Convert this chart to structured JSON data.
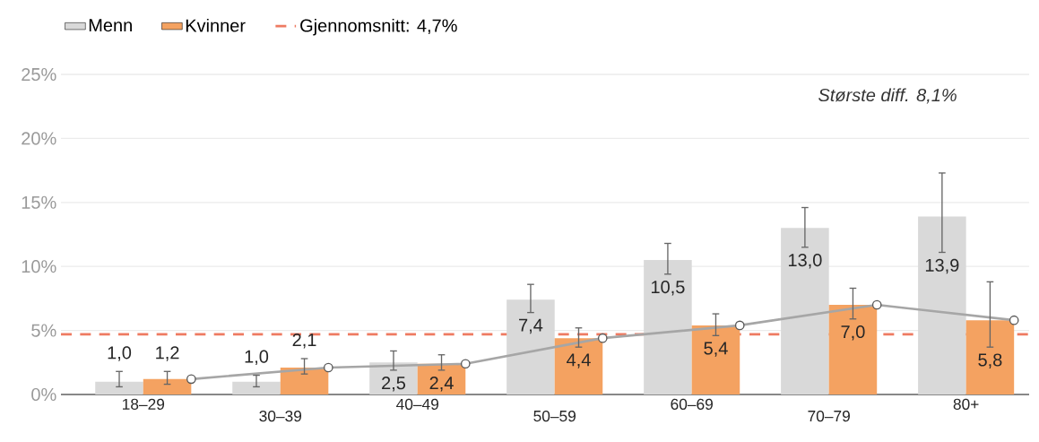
{
  "chart_data": {
    "type": "bar",
    "categories": [
      "18–29",
      "30–39",
      "40–49",
      "50–59",
      "60–69",
      "70–79",
      "80+"
    ],
    "series": [
      {
        "name": "Menn",
        "color": "#d9d9d9",
        "values": [
          1.0,
          1.0,
          2.5,
          7.4,
          10.5,
          13.0,
          13.9
        ],
        "value_labels": [
          "1,0",
          "1,0",
          "2,5",
          "7,4",
          "10,5",
          "13,0",
          "13,9"
        ],
        "errors": [
          [
            0.6,
            1.8
          ],
          [
            0.6,
            1.5
          ],
          [
            1.9,
            3.4
          ],
          [
            6.4,
            8.6
          ],
          [
            9.4,
            11.8
          ],
          [
            11.5,
            14.6
          ],
          [
            11.1,
            17.3
          ]
        ]
      },
      {
        "name": "Kvinner",
        "color": "#f4a261",
        "values": [
          1.2,
          2.1,
          2.4,
          4.4,
          5.4,
          7.0,
          5.8
        ],
        "value_labels": [
          "1,2",
          "2,1",
          "2,4",
          "4,4",
          "5,4",
          "7,0",
          "5,8"
        ],
        "errors": [
          [
            0.8,
            1.8
          ],
          [
            1.6,
            2.8
          ],
          [
            1.9,
            3.1
          ],
          [
            3.7,
            5.2
          ],
          [
            4.6,
            6.3
          ],
          [
            5.9,
            8.3
          ],
          [
            3.7,
            8.8
          ]
        ]
      },
      {
        "type": "line",
        "color": "#a6a6a6",
        "marker": "circle",
        "values": [
          1.2,
          2.1,
          2.4,
          4.4,
          5.4,
          7.0,
          5.8
        ]
      }
    ],
    "ylim": [
      0,
      25
    ],
    "yticks": [
      {
        "value": 0,
        "label": "0%"
      },
      {
        "value": 5,
        "label": "5%"
      },
      {
        "value": 10,
        "label": "10%"
      },
      {
        "value": 15,
        "label": "15%"
      },
      {
        "value": 20,
        "label": "20%"
      },
      {
        "value": 25,
        "label": "25%"
      }
    ],
    "ref_lines": [
      {
        "axis": "y",
        "value": 4.7,
        "label": "Gjennomsnitt: 4,7%",
        "color": "#ee7b62",
        "line_style": "dashed"
      }
    ],
    "annotations": [
      "Største diff. 8,1%"
    ],
    "grid": "y",
    "legend": "top left"
  }
}
